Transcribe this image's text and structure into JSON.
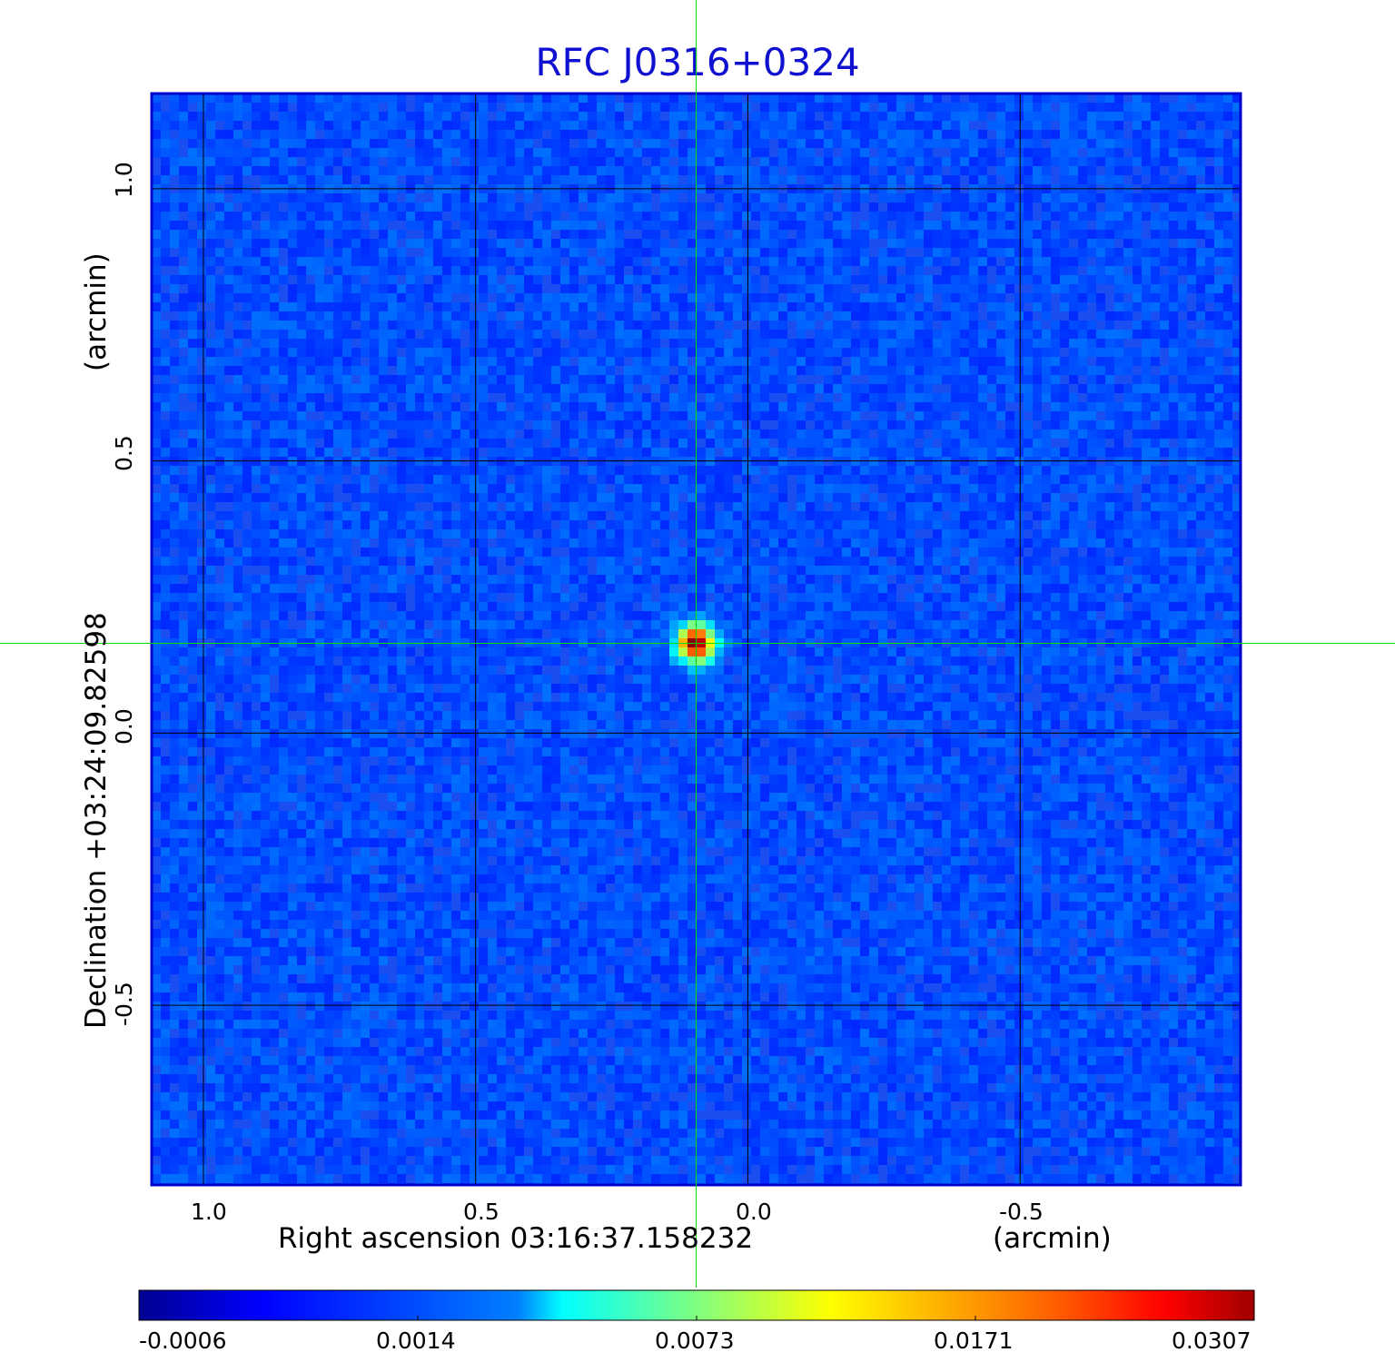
{
  "chart_data": {
    "type": "heatmap",
    "title": "RFC J0316+0324",
    "xlabel_main": "Right ascension  03:16:37.158232",
    "xlabel_unit": "(arcmin)",
    "ylabel_main": "Declination  +03:24:09.82598",
    "ylabel_unit": "(arcmin)",
    "x_ticks": [
      {
        "value": 1.0,
        "label": "1.0"
      },
      {
        "value": 0.5,
        "label": "0.5"
      },
      {
        "value": 0.0,
        "label": "0.0"
      },
      {
        "value": -0.5,
        "label": "-0.5"
      }
    ],
    "y_ticks": [
      {
        "value": 1.0,
        "label": "1.0"
      },
      {
        "value": 0.5,
        "label": "0.5"
      },
      {
        "value": 0.0,
        "label": "0.0"
      },
      {
        "value": -0.5,
        "label": "-0.5"
      }
    ],
    "xlim": [
      1.095,
      -0.905
    ],
    "ylim": [
      -0.83,
      1.175
    ],
    "grid": true,
    "source_peak": {
      "x": 0.095,
      "y": 0.165,
      "value": 0.0307
    },
    "crosshair": {
      "x": 0.095,
      "y": 0.165
    },
    "colorbar": {
      "colormap": "jet",
      "tick_labels": [
        "-0.0006",
        "0.0014",
        "0.0073",
        "0.0171",
        "0.0307"
      ],
      "min": -0.0006,
      "max": 0.0307
    },
    "colors": {
      "title": "#1010d0",
      "crosshair": "#00dd00",
      "grid": "#000000",
      "frame": "#0000cc"
    }
  }
}
